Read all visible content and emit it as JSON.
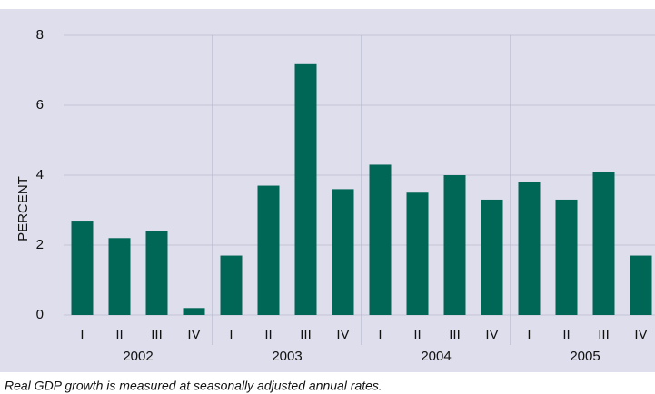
{
  "chart_data": {
    "type": "bar",
    "y_label": "PERCENT",
    "note": "Real GDP growth is measured at seasonally adjusted annual rates.",
    "categories": [
      "I",
      "II",
      "III",
      "IV",
      "I",
      "II",
      "III",
      "IV",
      "I",
      "II",
      "III",
      "IV",
      "I",
      "II",
      "III",
      "IV"
    ],
    "groups": [
      "2002",
      "2003",
      "2004",
      "2005"
    ],
    "values": [
      2.7,
      2.2,
      2.4,
      0.2,
      1.7,
      3.7,
      7.2,
      3.6,
      4.3,
      3.5,
      4.0,
      3.3,
      3.8,
      3.3,
      4.1,
      1.7
    ],
    "color": "#006655",
    "ylim": [
      0,
      8
    ],
    "yticks": [
      0,
      2,
      4,
      6,
      8
    ],
    "grid": true
  }
}
